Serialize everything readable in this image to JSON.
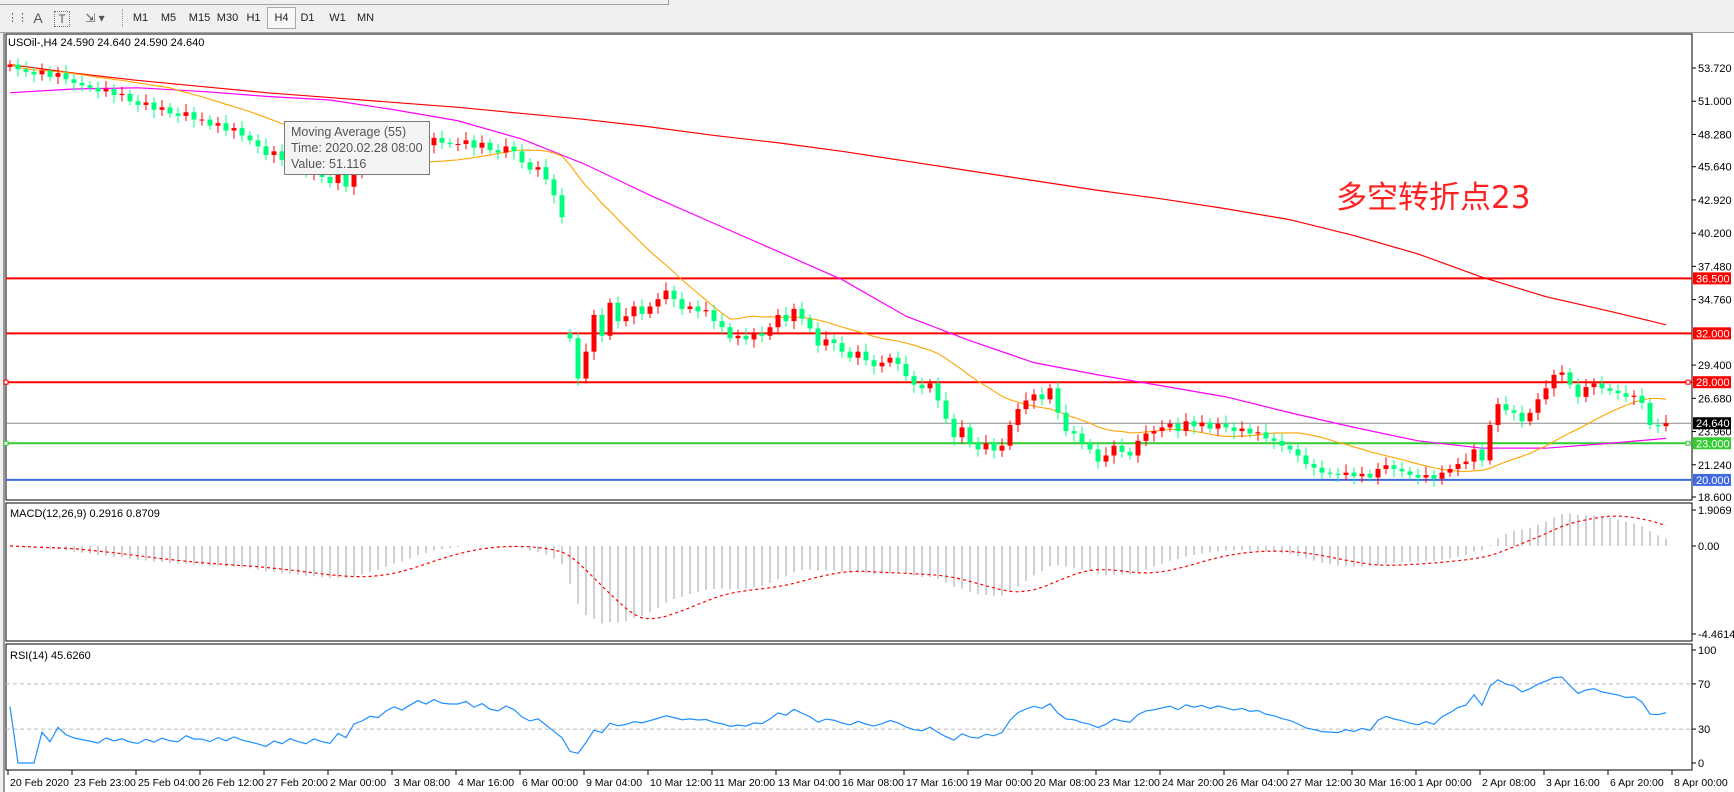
{
  "toolbar": {
    "icons": [
      "grid-icon",
      "text-A-icon",
      "text-label-icon",
      "arrows-icon"
    ],
    "timeframes": [
      "M1",
      "M5",
      "M15",
      "M30",
      "H1",
      "H4",
      "D1",
      "W1",
      "MN"
    ],
    "active_timeframe": "H4"
  },
  "chart": {
    "header": "USOil-,H4  24.590 24.640 24.590 24.640",
    "annotation": "多空转折点23",
    "tooltip": {
      "line1": "Moving Average (55)",
      "line2": "Time: 2020.02.28 08:00",
      "line3": "Value: 51.116"
    },
    "bull_color": "#ff0000",
    "bear_color": "#00ff7f",
    "current_price": "24.640",
    "price_ticks": [
      "53.720",
      "51.000",
      "48.280",
      "45.640",
      "42.920",
      "40.200",
      "37.480",
      "34.760",
      "29.400",
      "26.680",
      "23.960",
      "21.240",
      "18.600"
    ],
    "levels": [
      {
        "price": 36.5,
        "label": "36.500",
        "color": "#ff0000"
      },
      {
        "price": 32.0,
        "label": "32.000",
        "color": "#ff0000"
      },
      {
        "price": 28.0,
        "label": "28.000",
        "color": "#ff0000"
      },
      {
        "price": 23.0,
        "label": "23.000",
        "color": "#33cc33"
      },
      {
        "price": 20.0,
        "label": "20.000",
        "color": "#4169e1"
      }
    ],
    "macd": {
      "label": "MACD(12,26,9) 0.2916 0.8709",
      "ticks": [
        "1.9069",
        "0.00",
        "-4.4614"
      ]
    },
    "rsi": {
      "label": "RSI(14) 45.6260",
      "ticks": [
        "100",
        "70",
        "30",
        "0"
      ],
      "color": "#1e90ff"
    }
  },
  "chart_data": {
    "type": "candlestick",
    "symbol": "USOil-",
    "timeframe": "H4",
    "ylim": [
      18.6,
      54.5
    ],
    "x_tick_labels": [
      "20 Feb 2020",
      "23 Feb 23:00",
      "25 Feb 04:00",
      "26 Feb 12:00",
      "27 Feb 20:00",
      "2 Mar 00:00",
      "3 Mar 08:00",
      "4 Mar 16:00",
      "6 Mar 00:00",
      "9 Mar 04:00",
      "10 Mar 12:00",
      "11 Mar 20:00",
      "13 Mar 04:00",
      "16 Mar 08:00",
      "17 Mar 16:00",
      "19 Mar 00:00",
      "20 Mar 08:00",
      "23 Mar 12:00",
      "24 Mar 20:00",
      "26 Mar 04:00",
      "27 Mar 12:00",
      "30 Mar 16:00",
      "1 Apr 00:00",
      "2 Apr 08:00",
      "3 Apr 16:00",
      "6 Apr 20:00",
      "8 Apr 00:00"
    ],
    "closes": [
      54.0,
      53.6,
      53.4,
      53.2,
      53.5,
      53.0,
      53.3,
      52.8,
      52.5,
      52.3,
      52.1,
      51.8,
      52.0,
      51.5,
      51.6,
      51.0,
      50.7,
      50.9,
      50.3,
      50.5,
      50.0,
      49.8,
      50.1,
      49.5,
      49.5,
      49.0,
      49.2,
      48.6,
      48.8,
      48.2,
      47.8,
      47.3,
      46.6,
      46.9,
      46.2,
      46.5,
      45.8,
      45.2,
      45.5,
      44.8,
      44.3,
      45.0,
      44.0,
      45.2,
      45.5,
      46.0,
      45.8,
      46.5,
      47.0,
      46.6,
      47.2,
      47.8,
      47.4,
      48.0,
      47.6,
      47.5,
      47.5,
      47.8,
      47.2,
      47.6,
      47.0,
      46.8,
      47.3,
      46.9,
      46.0,
      45.4,
      45.6,
      44.6,
      43.3,
      41.5,
      31.6,
      28.3,
      30.5,
      33.5,
      31.8,
      34.5,
      33.0,
      33.4,
      34.2,
      33.6,
      34.2,
      34.8,
      35.5,
      34.8,
      34.0,
      34.2,
      33.8,
      33.9,
      33.0,
      32.5,
      31.6,
      31.8,
      31.5,
      32.0,
      31.8,
      32.5,
      33.5,
      33.0,
      34.0,
      33.2,
      32.4,
      31.0,
      31.5,
      31.2,
      30.5,
      30.0,
      30.5,
      29.8,
      29.3,
      29.6,
      30.0,
      29.5,
      28.5,
      27.8,
      27.5,
      27.9,
      26.5,
      25.0,
      23.5,
      24.3,
      23.0,
      22.5,
      23.0,
      22.4,
      22.8,
      24.5,
      25.8,
      26.5,
      27.0,
      26.6,
      27.5,
      25.5,
      24.0,
      23.8,
      23.0,
      22.5,
      21.5,
      22.0,
      22.8,
      22.3,
      22.0,
      23.2,
      23.8,
      24.0,
      24.3,
      24.6,
      24.0,
      24.8,
      24.4,
      24.7,
      24.2,
      24.6,
      24.3,
      24.0,
      24.2,
      23.8,
      23.9,
      23.4,
      23.2,
      22.8,
      22.5,
      22.0,
      21.3,
      21.0,
      20.6,
      20.5,
      20.4,
      20.6,
      20.3,
      20.5,
      20.2,
      20.9,
      21.2,
      20.9,
      20.7,
      20.4,
      20.2,
      20.4,
      20.1,
      20.6,
      20.9,
      21.3,
      21.5,
      22.5,
      21.6,
      24.5,
      26.2,
      25.7,
      25.5,
      24.8,
      25.5,
      26.6,
      27.5,
      28.6,
      28.8,
      27.8,
      26.8,
      27.6,
      27.9,
      27.5,
      27.3,
      27.1,
      26.8,
      26.9,
      26.3,
      24.5,
      24.4,
      24.64
    ],
    "moving_averages_at_x_ticks": [
      {
        "color": "#ff0000",
        "values": [
          54.0,
          53.3,
          52.7,
          52.2,
          51.7,
          51.3,
          50.9,
          50.5,
          50.0,
          49.5,
          48.9,
          48.2,
          47.6,
          46.9,
          46.1,
          45.3,
          44.5,
          43.7,
          43.0,
          42.2,
          41.3,
          40.0,
          38.5,
          36.6,
          35.0,
          33.8,
          32.7
        ]
      },
      {
        "color": "#ff00ff",
        "values": [
          51.7,
          52.0,
          52.1,
          51.8,
          51.4,
          51.1,
          50.3,
          49.4,
          47.9,
          45.8,
          43.3,
          41.0,
          38.7,
          36.4,
          33.4,
          31.4,
          29.6,
          28.6,
          27.7,
          26.8,
          25.5,
          24.3,
          23.2,
          22.6,
          22.6,
          23.0,
          23.4
        ]
      }
    ],
    "fast_ma_color": "#ffa500"
  }
}
